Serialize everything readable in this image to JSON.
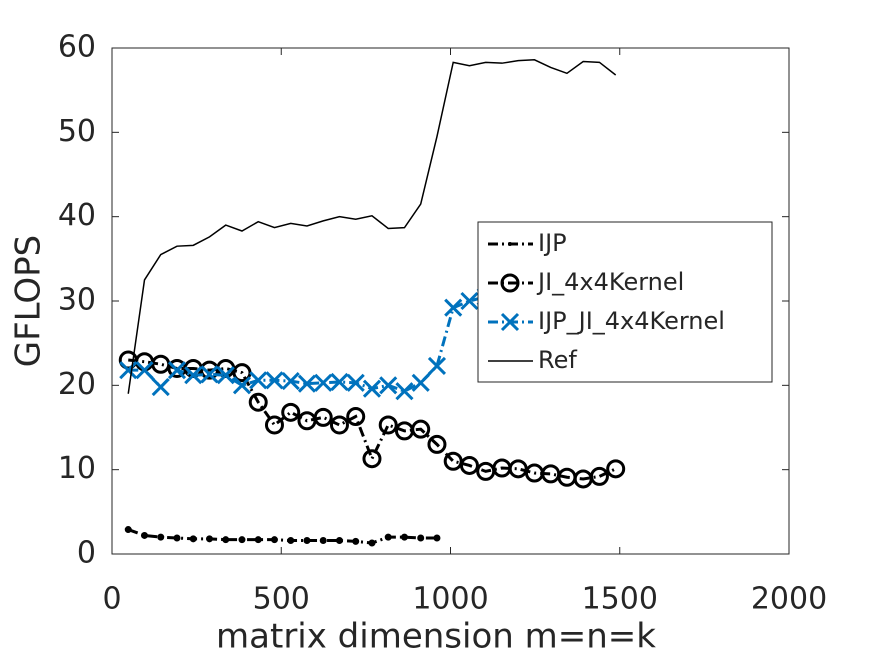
{
  "chart_data": {
    "type": "line",
    "xlabel": "matrix dimension m=n=k",
    "ylabel": "GFLOPS",
    "x": [
      48,
      96,
      144,
      192,
      240,
      288,
      336,
      384,
      432,
      480,
      528,
      576,
      624,
      672,
      720,
      768,
      816,
      864,
      912,
      960,
      1008,
      1056,
      1104,
      1152,
      1200,
      1248,
      1296,
      1344,
      1392,
      1440,
      1488
    ],
    "series": [
      {
        "name": "IJP",
        "color": "#000000",
        "marker": "dot",
        "dash": "dashdot",
        "values": [
          2.9,
          2.2,
          2.0,
          1.9,
          1.8,
          1.8,
          1.7,
          1.7,
          1.7,
          1.7,
          1.6,
          1.6,
          1.6,
          1.6,
          1.5,
          1.3,
          2.0,
          2.0,
          1.9,
          1.9,
          null,
          null,
          null,
          null,
          null,
          null,
          null,
          null,
          null,
          null,
          null
        ]
      },
      {
        "name": "JI_4x4Kernel",
        "color": "#000000",
        "marker": "circle",
        "dash": "dashdot",
        "values": [
          23.0,
          22.8,
          22.5,
          22.0,
          22.0,
          21.8,
          22.0,
          21.5,
          18.0,
          15.3,
          16.8,
          15.8,
          16.2,
          15.3,
          16.3,
          11.3,
          15.3,
          14.6,
          14.8,
          13.0,
          11.0,
          10.5,
          9.8,
          10.2,
          10.1,
          9.6,
          9.5,
          9.1,
          8.9,
          9.2,
          10.1
        ]
      },
      {
        "name": "IJP_JI_4x4Kernel",
        "color": "#0072bd",
        "marker": "x",
        "dash": "dashdot",
        "values": [
          21.8,
          21.8,
          19.8,
          21.8,
          21.2,
          21.3,
          21.2,
          20.0,
          20.6,
          20.6,
          20.5,
          20.2,
          20.3,
          20.4,
          20.3,
          19.6,
          20.0,
          19.3,
          20.3,
          22.3,
          29.2,
          30.0,
          30.5,
          30.5,
          30.5,
          30.5,
          30.5,
          30.5,
          30.5,
          30.5,
          30.5
        ]
      },
      {
        "name": "Ref",
        "color": "#000000",
        "marker": "none",
        "dash": "solid",
        "values": [
          19.0,
          32.5,
          35.5,
          36.5,
          36.6,
          37.6,
          39.0,
          38.3,
          39.4,
          38.7,
          39.2,
          38.9,
          39.5,
          40.0,
          39.7,
          40.1,
          38.6,
          38.7,
          41.5,
          49.5,
          58.3,
          57.9,
          58.3,
          58.2,
          58.5,
          58.6,
          57.7,
          57.0,
          58.4,
          58.3,
          56.8
        ]
      }
    ],
    "xlim": [
      0,
      2000
    ],
    "xticks": [
      0,
      500,
      1000,
      1500,
      2000
    ],
    "ylim": [
      0,
      60
    ],
    "yticks": [
      0,
      10,
      20,
      30,
      40,
      50,
      60
    ],
    "grid": false,
    "legend": "right"
  }
}
